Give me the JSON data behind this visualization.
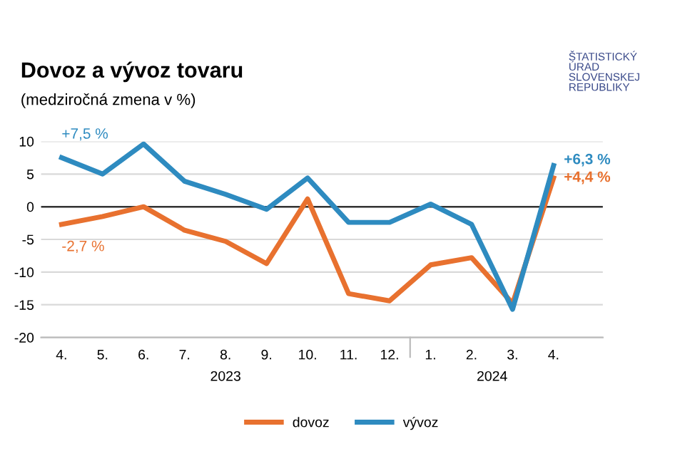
{
  "chart_data": {
    "type": "line",
    "title": "Dovoz a vývoz tovaru",
    "subtitle": "(medziročná zmena v %)",
    "annotations": [
      "ŠTATISTICKÝ\nÚRAD\nSLOVENSKEJ\nREPUBLIKY",
      "2023",
      "2024"
    ],
    "categories": [
      "4.",
      "5.",
      "6.",
      "7.",
      "8.",
      "9.",
      "10.",
      "11.",
      "12.",
      "1.",
      "2.",
      "3.",
      "4."
    ],
    "series": [
      {
        "name": "dovoz",
        "color": "#e8712f",
        "values": [
          -2.7,
          -1.5,
          0,
          -3.6,
          -5.3,
          -8.7,
          1.2,
          -13.3,
          -14.4,
          -8.9,
          -7.8,
          -14.8,
          4.4
        ],
        "value_labels": [
          "-2,7 %",
          null,
          null,
          null,
          null,
          null,
          null,
          null,
          null,
          null,
          null,
          null,
          "+4,4 %"
        ]
      },
      {
        "name": "vývoz",
        "color": "#2e8bc0",
        "values": [
          7.5,
          5.0,
          9.6,
          3.9,
          1.9,
          -0.4,
          4.4,
          -2.4,
          -2.4,
          0.4,
          -2.7,
          -15.7,
          6.3
        ],
        "value_labels": [
          "+7,5 %",
          null,
          null,
          null,
          null,
          null,
          null,
          null,
          null,
          null,
          null,
          null,
          "+6,3 %"
        ]
      }
    ],
    "ylim": [
      -20,
      10
    ],
    "yticks": [
      -20,
      -15,
      -10,
      -5,
      0,
      5,
      10
    ],
    "ref_lines": [
      {
        "axis": "y",
        "value": 0,
        "color": "#333333"
      }
    ],
    "grid": "y",
    "legend": "bottom",
    "marker": "none",
    "line_style": "solid"
  }
}
